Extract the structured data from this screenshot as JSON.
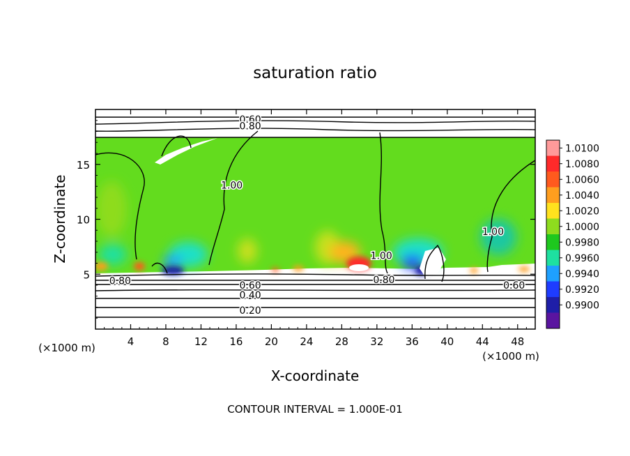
{
  "chart_data": {
    "type": "heatmap",
    "title": "saturation ratio",
    "xlabel": "X-coordinate",
    "ylabel": "Z-coordinate",
    "x_unit_left": "(×1000 m)",
    "x_unit_right": "(×1000 m)",
    "xlim": [
      0,
      50
    ],
    "ylim": [
      0,
      20
    ],
    "x_ticks": [
      4,
      8,
      12,
      16,
      20,
      24,
      28,
      32,
      36,
      40,
      44,
      48
    ],
    "y_ticks": [
      5,
      10,
      15
    ],
    "footer": "CONTOUR INTERVAL = 1.000E-01",
    "colorbar": {
      "levels": [
        "1.0100",
        "1.0080",
        "1.0060",
        "1.0040",
        "1.0020",
        "1.0000",
        "0.9980",
        "0.9960",
        "0.9940",
        "0.9920",
        "0.9900"
      ],
      "colors": [
        "#ff9a9a",
        "#ff2a2a",
        "#ff5a1e",
        "#ff9e1e",
        "#ffe21e",
        "#8edc1e",
        "#1ec81e",
        "#1ee0a0",
        "#1ea0ff",
        "#1e3cff",
        "#1e1ea8",
        "#5a14a0"
      ]
    },
    "contour_labels": [
      {
        "text": "0.60",
        "x": 17.6,
        "z": 19.1
      },
      {
        "text": "0.80",
        "x": 17.6,
        "z": 18.5
      },
      {
        "text": "1.00",
        "x": 15.5,
        "z": 13.1
      },
      {
        "text": "1.00",
        "x": 32.5,
        "z": 6.7
      },
      {
        "text": "1.00",
        "x": 45.2,
        "z": 8.9
      },
      {
        "text": "0.80",
        "x": 2.8,
        "z": 4.4
      },
      {
        "text": "0.60",
        "x": 17.6,
        "z": 4.0
      },
      {
        "text": "0.40",
        "x": 17.6,
        "z": 3.1
      },
      {
        "text": "0.20",
        "x": 17.6,
        "z": 1.7
      },
      {
        "text": "0.80",
        "x": 32.8,
        "z": 4.5
      },
      {
        "text": "0.60",
        "x": 47.6,
        "z": 4.0
      }
    ]
  }
}
